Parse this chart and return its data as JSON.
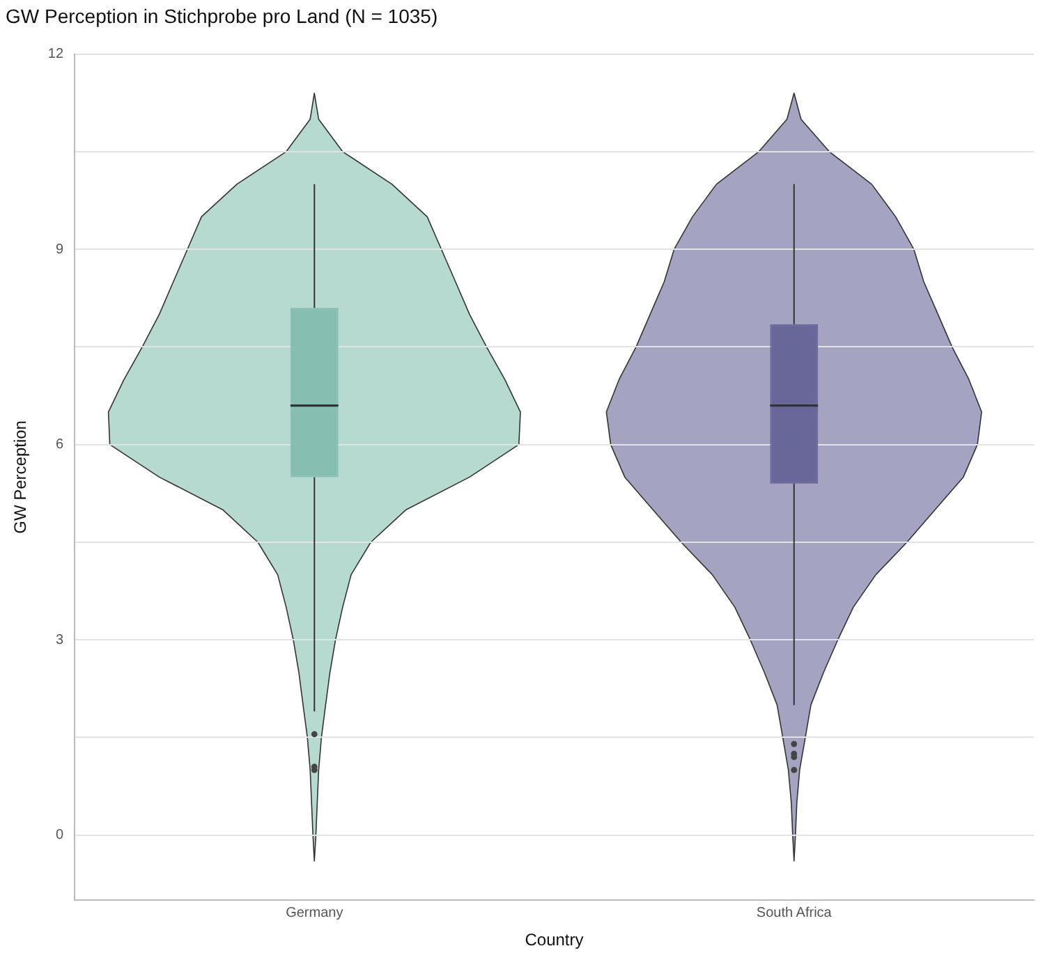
{
  "chart_data": {
    "type": "box",
    "title": "GW Perception in Stichprobe pro Land (N = 1035)",
    "xlabel": "Country",
    "ylabel": "GW Perception",
    "categories": [
      "Germany",
      "South Africa"
    ],
    "colors": [
      "#86bfb1",
      "#67679a"
    ],
    "boxes": [
      {
        "low": 1.9,
        "q1": 5.5,
        "median": 6.6,
        "q3": 8.1,
        "high": 10,
        "outliers": [
          1.55,
          1.05,
          1.0
        ]
      },
      {
        "low": 2.0,
        "q1": 5.4,
        "median": 6.6,
        "q3": 7.85,
        "high": 10,
        "outliers": [
          1.4,
          1.25,
          1.2,
          1.0
        ]
      }
    ],
    "ylim": [
      -1,
      12
    ],
    "yticks": [
      0,
      {
        "value": 1.5,
        "label": null
      },
      3,
      {
        "value": 4.5,
        "label": null
      },
      6,
      {
        "value": 7.5,
        "label": null
      },
      9,
      {
        "value": 10.5,
        "label": null
      },
      12
    ],
    "grid": "y"
  }
}
